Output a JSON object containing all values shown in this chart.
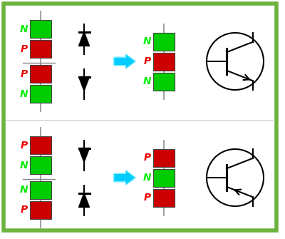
{
  "bg_color": "#ffffff",
  "border_color": "#6db33f",
  "border_width": 4,
  "green": "#00cc00",
  "red": "#cc0000",
  "black": "#000000",
  "cyan": "#00ccff",
  "label_green": "#00ee00",
  "label_red": "#ee0000",
  "top_row": {
    "left_blocks_top": [
      {
        "color": "#00cc00",
        "label": "N",
        "label_color": "#00ee00"
      },
      {
        "color": "#cc0000",
        "label": "P",
        "label_color": "#ee0000"
      }
    ],
    "left_blocks_bottom": [
      {
        "color": "#cc0000",
        "label": "P",
        "label_color": "#ee0000"
      },
      {
        "color": "#00cc00",
        "label": "N",
        "label_color": "#00ee00"
      }
    ],
    "right_blocks": [
      {
        "color": "#00cc00",
        "label": "N",
        "label_color": "#00ee00"
      },
      {
        "color": "#cc0000",
        "label": "P",
        "label_color": "#ee0000"
      },
      {
        "color": "#00cc00",
        "label": "N",
        "label_color": "#00ee00"
      }
    ],
    "diode_top_up": true,
    "diode_bottom_down": true,
    "transistor": "npn"
  },
  "bottom_row": {
    "left_blocks_top": [
      {
        "color": "#cc0000",
        "label": "P",
        "label_color": "#ee0000"
      },
      {
        "color": "#00cc00",
        "label": "N",
        "label_color": "#00ee00"
      }
    ],
    "left_blocks_bottom": [
      {
        "color": "#00cc00",
        "label": "N",
        "label_color": "#00ee00"
      },
      {
        "color": "#cc0000",
        "label": "P",
        "label_color": "#ee0000"
      }
    ],
    "right_blocks": [
      {
        "color": "#cc0000",
        "label": "P",
        "label_color": "#ee0000"
      },
      {
        "color": "#00cc00",
        "label": "N",
        "label_color": "#00ee00"
      },
      {
        "color": "#cc0000",
        "label": "P",
        "label_color": "#ee0000"
      }
    ],
    "diode_top_up": false,
    "diode_bottom_down": false,
    "transistor": "pnp"
  }
}
